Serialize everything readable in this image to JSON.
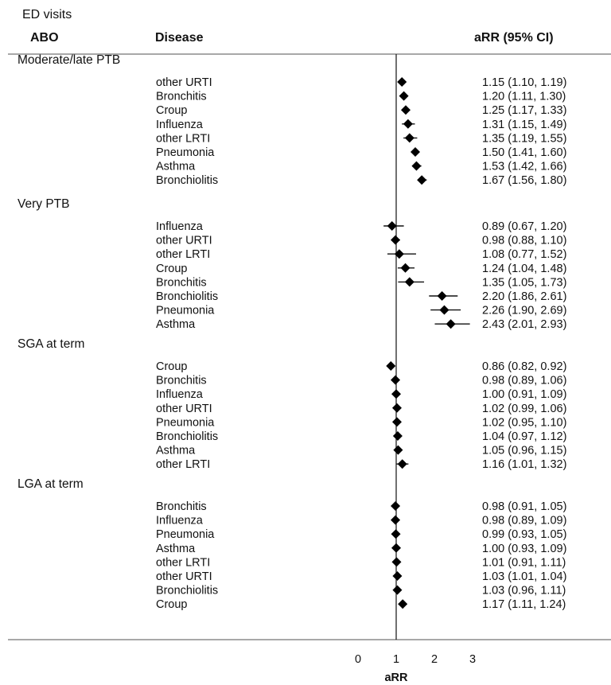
{
  "header": {
    "title": "ED visits",
    "col_group": "ABO",
    "col_disease": "Disease",
    "col_estimate": "aRR (95% CI)"
  },
  "chart_data": {
    "type": "forest",
    "xlabel": "aRR",
    "xticks": [
      0,
      1,
      2,
      3
    ],
    "reference_line": 1,
    "groups": [
      {
        "name": "Moderate/late PTB",
        "rows": [
          {
            "disease": "other URTI",
            "est": 1.15,
            "lo": 1.1,
            "hi": 1.19,
            "text": "1.15 (1.10, 1.19)"
          },
          {
            "disease": "Bronchitis",
            "est": 1.2,
            "lo": 1.11,
            "hi": 1.3,
            "text": "1.20 (1.11, 1.30)"
          },
          {
            "disease": "Croup",
            "est": 1.25,
            "lo": 1.17,
            "hi": 1.33,
            "text": "1.25 (1.17, 1.33)"
          },
          {
            "disease": "Influenza",
            "est": 1.31,
            "lo": 1.15,
            "hi": 1.49,
            "text": "1.31 (1.15, 1.49)"
          },
          {
            "disease": "other LRTI",
            "est": 1.35,
            "lo": 1.19,
            "hi": 1.55,
            "text": "1.35 (1.19, 1.55)"
          },
          {
            "disease": "Pneumonia",
            "est": 1.5,
            "lo": 1.41,
            "hi": 1.6,
            "text": "1.50 (1.41, 1.60)"
          },
          {
            "disease": "Asthma",
            "est": 1.53,
            "lo": 1.42,
            "hi": 1.66,
            "text": "1.53 (1.42, 1.66)"
          },
          {
            "disease": "Bronchiolitis",
            "est": 1.67,
            "lo": 1.56,
            "hi": 1.8,
            "text": "1.67 (1.56, 1.80)"
          }
        ]
      },
      {
        "name": "Very PTB",
        "rows": [
          {
            "disease": "Influenza",
            "est": 0.89,
            "lo": 0.67,
            "hi": 1.2,
            "text": "0.89 (0.67, 1.20)"
          },
          {
            "disease": "other URTI",
            "est": 0.98,
            "lo": 0.88,
            "hi": 1.1,
            "text": "0.98 (0.88, 1.10)"
          },
          {
            "disease": "other LRTI",
            "est": 1.08,
            "lo": 0.77,
            "hi": 1.52,
            "text": "1.08 (0.77, 1.52)"
          },
          {
            "disease": "Croup",
            "est": 1.24,
            "lo": 1.04,
            "hi": 1.48,
            "text": "1.24 (1.04, 1.48)"
          },
          {
            "disease": "Bronchitis",
            "est": 1.35,
            "lo": 1.05,
            "hi": 1.73,
            "text": "1.35 (1.05, 1.73)"
          },
          {
            "disease": "Bronchiolitis",
            "est": 2.2,
            "lo": 1.86,
            "hi": 2.61,
            "text": "2.20 (1.86, 2.61)"
          },
          {
            "disease": "Pneumonia",
            "est": 2.26,
            "lo": 1.9,
            "hi": 2.69,
            "text": "2.26 (1.90, 2.69)"
          },
          {
            "disease": "Asthma",
            "est": 2.43,
            "lo": 2.01,
            "hi": 2.93,
            "text": "2.43 (2.01, 2.93)"
          }
        ]
      },
      {
        "name": "SGA at term",
        "rows": [
          {
            "disease": "Croup",
            "est": 0.86,
            "lo": 0.82,
            "hi": 0.92,
            "text": "0.86 (0.82, 0.92)"
          },
          {
            "disease": "Bronchitis",
            "est": 0.98,
            "lo": 0.89,
            "hi": 1.06,
            "text": "0.98 (0.89, 1.06)"
          },
          {
            "disease": "Influenza",
            "est": 1.0,
            "lo": 0.91,
            "hi": 1.09,
            "text": "1.00 (0.91, 1.09)"
          },
          {
            "disease": "other URTI",
            "est": 1.02,
            "lo": 0.99,
            "hi": 1.06,
            "text": "1.02 (0.99, 1.06)"
          },
          {
            "disease": "Pneumonia",
            "est": 1.02,
            "lo": 0.95,
            "hi": 1.1,
            "text": "1.02 (0.95, 1.10)"
          },
          {
            "disease": "Bronchiolitis",
            "est": 1.04,
            "lo": 0.97,
            "hi": 1.12,
            "text": "1.04 (0.97, 1.12)"
          },
          {
            "disease": "Asthma",
            "est": 1.05,
            "lo": 0.96,
            "hi": 1.15,
            "text": "1.05 (0.96, 1.15)"
          },
          {
            "disease": "other LRTI",
            "est": 1.16,
            "lo": 1.01,
            "hi": 1.32,
            "text": "1.16 (1.01, 1.32)"
          }
        ]
      },
      {
        "name": "LGA at term",
        "rows": [
          {
            "disease": "Bronchitis",
            "est": 0.98,
            "lo": 0.91,
            "hi": 1.05,
            "text": "0.98 (0.91, 1.05)"
          },
          {
            "disease": "Influenza",
            "est": 0.98,
            "lo": 0.89,
            "hi": 1.09,
            "text": "0.98 (0.89, 1.09)"
          },
          {
            "disease": "Pneumonia",
            "est": 0.99,
            "lo": 0.93,
            "hi": 1.05,
            "text": "0.99 (0.93, 1.05)"
          },
          {
            "disease": "Asthma",
            "est": 1.0,
            "lo": 0.93,
            "hi": 1.09,
            "text": "1.00 (0.93, 1.09)"
          },
          {
            "disease": "other LRTI",
            "est": 1.01,
            "lo": 0.91,
            "hi": 1.11,
            "text": "1.01 (0.91, 1.11)"
          },
          {
            "disease": "other URTI",
            "est": 1.03,
            "lo": 1.01,
            "hi": 1.04,
            "text": "1.03 (1.01, 1.04)"
          },
          {
            "disease": "Bronchiolitis",
            "est": 1.03,
            "lo": 0.96,
            "hi": 1.11,
            "text": "1.03 (0.96, 1.11)"
          },
          {
            "disease": "Croup",
            "est": 1.17,
            "lo": 1.11,
            "hi": 1.24,
            "text": "1.17 (1.11, 1.24)"
          }
        ]
      }
    ]
  }
}
